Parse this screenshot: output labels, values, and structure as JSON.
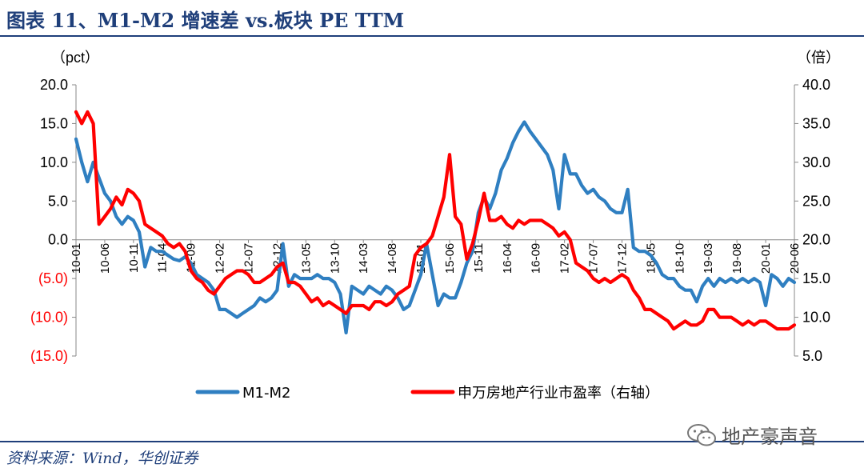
{
  "header": {
    "title": "图表 11、M1-M2 增速差 vs.板块 PE TTM"
  },
  "footer": {
    "source": "资料来源：Wind，华创证券"
  },
  "watermark": {
    "text": "地产豪声音",
    "icon": "wechat-icon"
  },
  "colors": {
    "series1": "#2f7fc1",
    "series2": "#ff0000",
    "title": "#1f3f7a",
    "neg_label": "#ff0000"
  },
  "chart_data": {
    "type": "line",
    "title": "",
    "left_axis": {
      "unit": "（pct）",
      "range": [
        -15,
        20
      ],
      "ticks": [
        20,
        15,
        10,
        5,
        0,
        -5,
        -10,
        -15
      ],
      "tick_labels": [
        "20.0",
        "15.0",
        "10.0",
        "5.0",
        "0.0",
        "(5.0)",
        "(10.0)",
        "(15.0)"
      ]
    },
    "right_axis": {
      "unit": "（倍）",
      "range": [
        5,
        40
      ],
      "ticks": [
        40,
        35,
        30,
        25,
        20,
        15,
        10,
        5
      ],
      "tick_labels": [
        "40.0",
        "35.0",
        "30.0",
        "25.0",
        "20.0",
        "15.0",
        "10.0",
        "5.0"
      ]
    },
    "x_axis": {
      "range": [
        0,
        125
      ],
      "ticks": [
        {
          "label": "10-01",
          "i": 0
        },
        {
          "label": "10-06",
          "i": 5
        },
        {
          "label": "10-11",
          "i": 10
        },
        {
          "label": "11-04",
          "i": 15
        },
        {
          "label": "11-09",
          "i": 20
        },
        {
          "label": "12-02",
          "i": 25
        },
        {
          "label": "12-07",
          "i": 30
        },
        {
          "label": "12-12",
          "i": 35
        },
        {
          "label": "13-05",
          "i": 40
        },
        {
          "label": "13-10",
          "i": 45
        },
        {
          "label": "14-03",
          "i": 50
        },
        {
          "label": "14-08",
          "i": 55
        },
        {
          "label": "15-01",
          "i": 60
        },
        {
          "label": "15-06",
          "i": 65
        },
        {
          "label": "15-11",
          "i": 70
        },
        {
          "label": "16-04",
          "i": 75
        },
        {
          "label": "16-09",
          "i": 80
        },
        {
          "label": "17-02",
          "i": 85
        },
        {
          "label": "17-07",
          "i": 90
        },
        {
          "label": "17-12",
          "i": 95
        },
        {
          "label": "18-05",
          "i": 100
        },
        {
          "label": "18-10",
          "i": 105
        },
        {
          "label": "19-03",
          "i": 110
        },
        {
          "label": "19-08",
          "i": 115
        },
        {
          "label": "20-01",
          "i": 120
        },
        {
          "label": "20-06",
          "i": 125
        }
      ]
    },
    "series": [
      {
        "name": "M1-M2",
        "axis": "left",
        "color": "#2f7fc1",
        "points": [
          [
            0,
            13
          ],
          [
            1,
            10
          ],
          [
            2,
            7.5
          ],
          [
            3,
            10
          ],
          [
            4,
            8
          ],
          [
            5,
            6
          ],
          [
            6,
            5
          ],
          [
            7,
            3
          ],
          [
            8,
            2
          ],
          [
            9,
            3
          ],
          [
            10,
            2.5
          ],
          [
            11,
            1
          ],
          [
            12,
            -3.5
          ],
          [
            13,
            -1
          ],
          [
            14,
            -1.5
          ],
          [
            15,
            -1.5
          ],
          [
            16,
            -2
          ],
          [
            17,
            -2.5
          ],
          [
            18,
            -2.7
          ],
          [
            19,
            -2.2
          ],
          [
            20,
            -3
          ],
          [
            21,
            -4.5
          ],
          [
            22,
            -5
          ],
          [
            23,
            -5.5
          ],
          [
            24,
            -6.5
          ],
          [
            25,
            -9
          ],
          [
            26,
            -9
          ],
          [
            27,
            -9.5
          ],
          [
            28,
            -10
          ],
          [
            29,
            -9.5
          ],
          [
            30,
            -9
          ],
          [
            31,
            -8.5
          ],
          [
            32,
            -7.5
          ],
          [
            33,
            -8
          ],
          [
            34,
            -7.5
          ],
          [
            35,
            -6.5
          ],
          [
            36,
            -0.5
          ],
          [
            37,
            -6
          ],
          [
            38,
            -4.5
          ],
          [
            39,
            -5
          ],
          [
            40,
            -5
          ],
          [
            41,
            -5
          ],
          [
            42,
            -4.5
          ],
          [
            43,
            -5
          ],
          [
            44,
            -5
          ],
          [
            45,
            -5.5
          ],
          [
            46,
            -7
          ],
          [
            47,
            -12
          ],
          [
            48,
            -6
          ],
          [
            49,
            -6.5
          ],
          [
            50,
            -7
          ],
          [
            51,
            -6
          ],
          [
            52,
            -6.5
          ],
          [
            53,
            -7
          ],
          [
            54,
            -6
          ],
          [
            55,
            -6.5
          ],
          [
            56,
            -7.5
          ],
          [
            57,
            -9
          ],
          [
            58,
            -8.5
          ],
          [
            59,
            -6.5
          ],
          [
            60,
            -4.5
          ],
          [
            61,
            -0.5
          ],
          [
            62,
            -4.5
          ],
          [
            63,
            -8.5
          ],
          [
            64,
            -7
          ],
          [
            65,
            -7.5
          ],
          [
            66,
            -7.5
          ],
          [
            67,
            -5.5
          ],
          [
            68,
            -3
          ],
          [
            69,
            -1.5
          ],
          [
            70,
            3.5
          ],
          [
            71,
            5.5
          ],
          [
            72,
            4
          ],
          [
            73,
            6
          ],
          [
            74,
            9
          ],
          [
            75,
            10.5
          ],
          [
            76,
            12.5
          ],
          [
            77,
            14
          ],
          [
            78,
            15.2
          ],
          [
            79,
            14
          ],
          [
            80,
            13
          ],
          [
            81,
            12
          ],
          [
            82,
            11
          ],
          [
            83,
            9
          ],
          [
            84,
            4
          ],
          [
            85,
            11
          ],
          [
            86,
            8.5
          ],
          [
            87,
            8.5
          ],
          [
            88,
            7
          ],
          [
            89,
            6
          ],
          [
            90,
            6.5
          ],
          [
            91,
            5.5
          ],
          [
            92,
            5
          ],
          [
            93,
            4
          ],
          [
            94,
            3.5
          ],
          [
            95,
            3.5
          ],
          [
            96,
            6.5
          ],
          [
            97,
            -1
          ],
          [
            98,
            -1.5
          ],
          [
            99,
            -1.5
          ],
          [
            100,
            -2
          ],
          [
            101,
            -3
          ],
          [
            102,
            -4.5
          ],
          [
            103,
            -5
          ],
          [
            104,
            -5
          ],
          [
            105,
            -6
          ],
          [
            106,
            -6.5
          ],
          [
            107,
            -6.5
          ],
          [
            108,
            -8
          ],
          [
            109,
            -6
          ],
          [
            110,
            -5
          ],
          [
            111,
            -6
          ],
          [
            112,
            -5
          ],
          [
            113,
            -5.5
          ],
          [
            114,
            -5
          ],
          [
            115,
            -5.5
          ],
          [
            116,
            -5
          ],
          [
            117,
            -5.5
          ],
          [
            118,
            -5
          ],
          [
            119,
            -5.5
          ],
          [
            120,
            -8.5
          ],
          [
            121,
            -4.5
          ],
          [
            122,
            -5
          ],
          [
            123,
            -6
          ],
          [
            124,
            -5
          ],
          [
            125,
            -5.5
          ]
        ]
      },
      {
        "name": "申万房地产行业市盈率（右轴）",
        "axis": "right",
        "color": "#ff0000",
        "points": [
          [
            0,
            36.5
          ],
          [
            1,
            35
          ],
          [
            2,
            36.5
          ],
          [
            3,
            35
          ],
          [
            4,
            22
          ],
          [
            5,
            23
          ],
          [
            6,
            24
          ],
          [
            7,
            25.5
          ],
          [
            8,
            24.5
          ],
          [
            9,
            26.5
          ],
          [
            10,
            26
          ],
          [
            11,
            25
          ],
          [
            12,
            22
          ],
          [
            13,
            21.5
          ],
          [
            14,
            21
          ],
          [
            15,
            20.5
          ],
          [
            16,
            19.5
          ],
          [
            17,
            19
          ],
          [
            18,
            19.5
          ],
          [
            19,
            18.5
          ],
          [
            20,
            16
          ],
          [
            21,
            15
          ],
          [
            22,
            14.5
          ],
          [
            23,
            13.5
          ],
          [
            24,
            13
          ],
          [
            25,
            14
          ],
          [
            26,
            15
          ],
          [
            27,
            15.5
          ],
          [
            28,
            16
          ],
          [
            29,
            16
          ],
          [
            30,
            15.5
          ],
          [
            31,
            14.5
          ],
          [
            32,
            14.5
          ],
          [
            33,
            15
          ],
          [
            34,
            15.5
          ],
          [
            35,
            16.5
          ],
          [
            36,
            17
          ],
          [
            37,
            14.5
          ],
          [
            38,
            14.5
          ],
          [
            39,
            14
          ],
          [
            40,
            13
          ],
          [
            41,
            12
          ],
          [
            42,
            12.5
          ],
          [
            43,
            11.5
          ],
          [
            44,
            12
          ],
          [
            45,
            11.5
          ],
          [
            46,
            11
          ],
          [
            47,
            10.5
          ],
          [
            48,
            11.5
          ],
          [
            49,
            11.5
          ],
          [
            50,
            11.5
          ],
          [
            51,
            11
          ],
          [
            52,
            12
          ],
          [
            53,
            12
          ],
          [
            54,
            11.5
          ],
          [
            55,
            12
          ],
          [
            56,
            13
          ],
          [
            57,
            13.5
          ],
          [
            58,
            14
          ],
          [
            59,
            18
          ],
          [
            60,
            19
          ],
          [
            61,
            19.5
          ],
          [
            62,
            20.5
          ],
          [
            63,
            23
          ],
          [
            64,
            25.5
          ],
          [
            65,
            31
          ],
          [
            66,
            23
          ],
          [
            67,
            22
          ],
          [
            68,
            17.5
          ],
          [
            69,
            19.5
          ],
          [
            70,
            22.5
          ],
          [
            71,
            26
          ],
          [
            72,
            22.5
          ],
          [
            73,
            22.5
          ],
          [
            74,
            23
          ],
          [
            75,
            22
          ],
          [
            76,
            21.5
          ],
          [
            77,
            22.5
          ],
          [
            78,
            22
          ],
          [
            79,
            22.5
          ],
          [
            80,
            22.5
          ],
          [
            81,
            22.5
          ],
          [
            82,
            22
          ],
          [
            83,
            21.5
          ],
          [
            84,
            20.5
          ],
          [
            85,
            21
          ],
          [
            86,
            20
          ],
          [
            87,
            17
          ],
          [
            88,
            16.5
          ],
          [
            89,
            16
          ],
          [
            90,
            15
          ],
          [
            91,
            14.5
          ],
          [
            92,
            15
          ],
          [
            93,
            14.5
          ],
          [
            94,
            15
          ],
          [
            95,
            15.5
          ],
          [
            96,
            15
          ],
          [
            97,
            13.5
          ],
          [
            98,
            12.5
          ],
          [
            99,
            11
          ],
          [
            100,
            11
          ],
          [
            101,
            10.5
          ],
          [
            102,
            10
          ],
          [
            103,
            9.5
          ],
          [
            104,
            8.5
          ],
          [
            105,
            9
          ],
          [
            106,
            9.5
          ],
          [
            107,
            9
          ],
          [
            108,
            9
          ],
          [
            109,
            9.5
          ],
          [
            110,
            11
          ],
          [
            111,
            11
          ],
          [
            112,
            10
          ],
          [
            113,
            10
          ],
          [
            114,
            10
          ],
          [
            115,
            9.5
          ],
          [
            116,
            9
          ],
          [
            117,
            9.5
          ],
          [
            118,
            9
          ],
          [
            119,
            9.5
          ],
          [
            120,
            9.5
          ],
          [
            121,
            9
          ],
          [
            122,
            8.5
          ],
          [
            123,
            8.5
          ],
          [
            124,
            8.5
          ],
          [
            125,
            9
          ]
        ]
      }
    ],
    "legend": {
      "placement": "bottom",
      "entries": [
        "M1-M2",
        "申万房地产行业市盈率（右轴）"
      ]
    },
    "grid": false
  }
}
